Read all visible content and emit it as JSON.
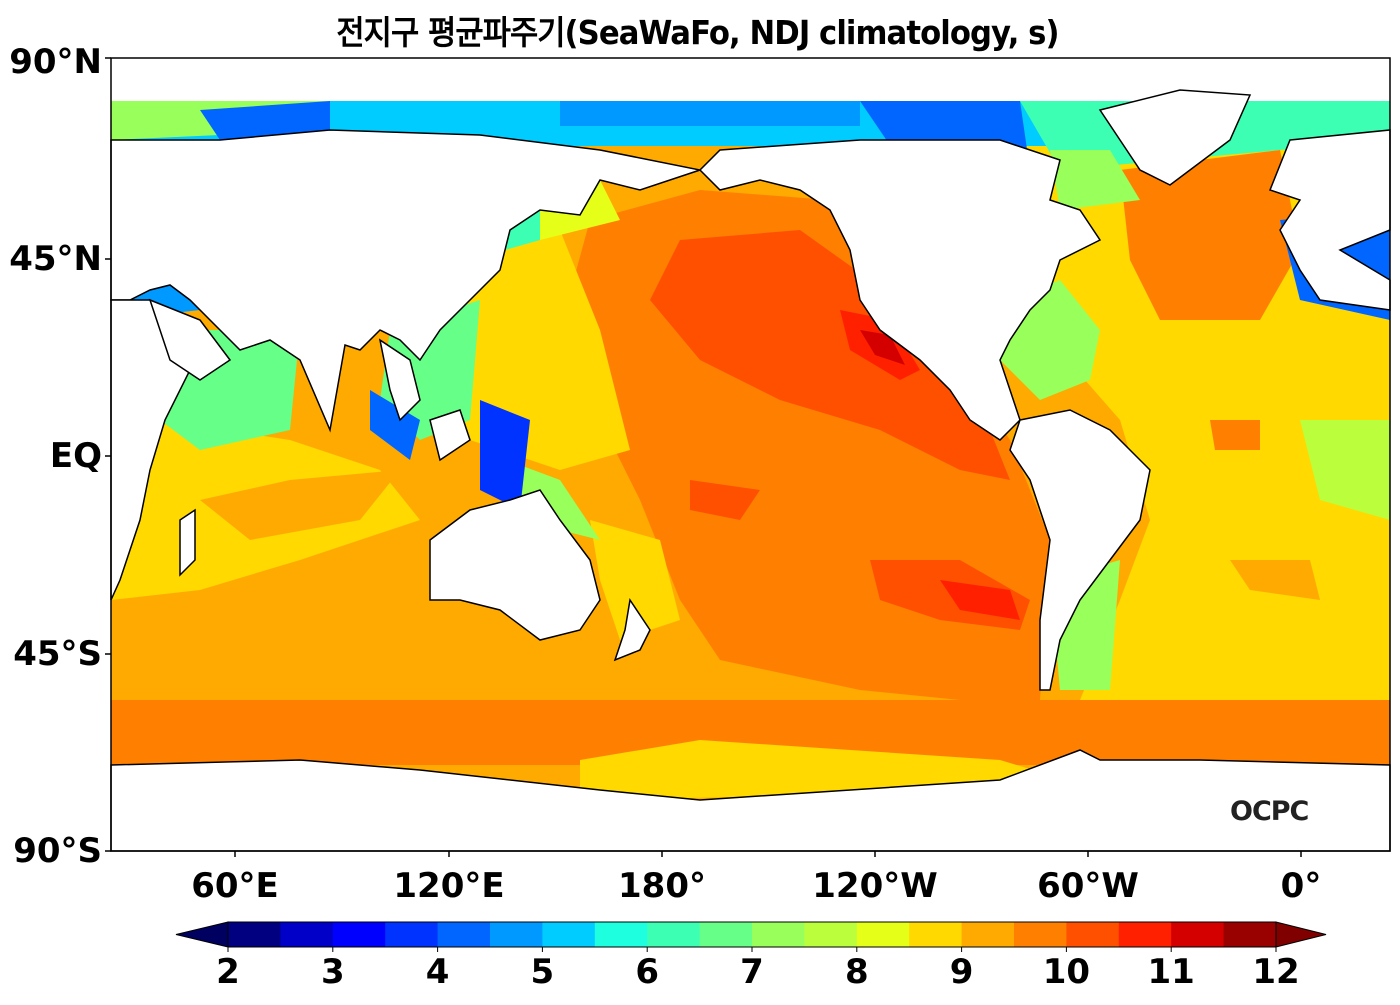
{
  "title": "전지구 평균파주기(SeaWaFo, NDJ climatology, s)",
  "lat_labels": [
    "90°N",
    "45°N",
    "EQ",
    "45°S",
    "90°S"
  ],
  "lon_labels": [
    "60°E",
    "120°E",
    "180°",
    "120°W",
    "60°W",
    "0°"
  ],
  "watermark": "OCPC",
  "colorbar": {
    "ticks": [
      "2",
      "3",
      "4",
      "5",
      "6",
      "7",
      "8",
      "9",
      "10",
      "11",
      "12"
    ],
    "min": 2,
    "max": 12,
    "step": 0.5,
    "extend": "both",
    "colors": [
      "#000080",
      "#0000c8",
      "#0000ff",
      "#0033ff",
      "#0066ff",
      "#0099ff",
      "#00ccff",
      "#1effe0",
      "#3cffb4",
      "#66ff88",
      "#99ff5a",
      "#bbff3c",
      "#e6ff19",
      "#ffd900",
      "#ffaa00",
      "#ff8000",
      "#ff5000",
      "#ff2000",
      "#d40000",
      "#990000"
    ],
    "under_color": "#000060",
    "over_color": "#800000"
  }
}
